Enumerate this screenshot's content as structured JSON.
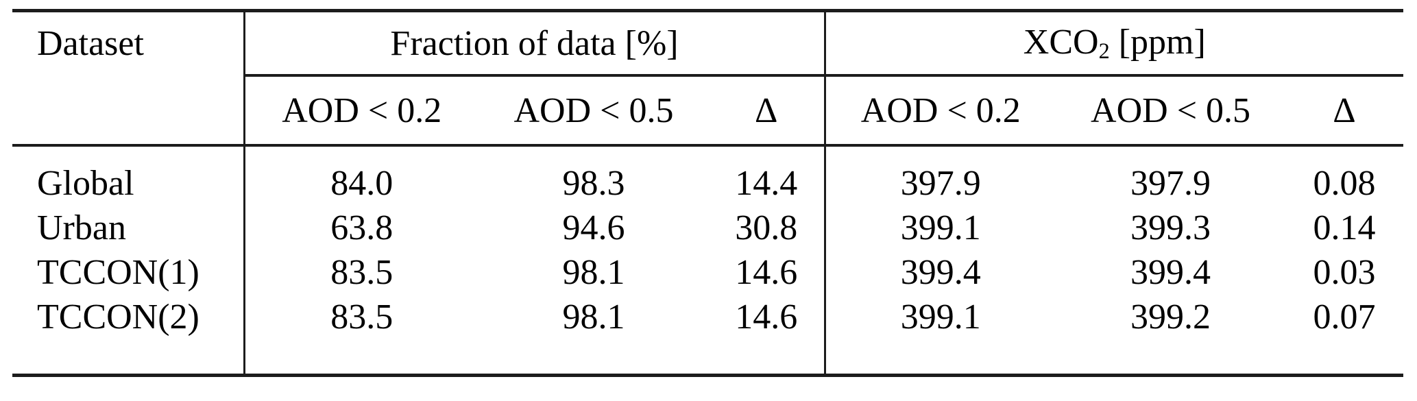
{
  "table": {
    "corner_header": "Dataset",
    "groups": [
      {
        "label": "Fraction of data [%]",
        "sub_headers": [
          "AOD < 0.2",
          "AOD < 0.5",
          "Δ"
        ]
      },
      {
        "label_prefix": "XCO",
        "label_subscript": "2",
        "label_suffix": " [ppm]",
        "sub_headers": [
          "AOD < 0.2",
          "AOD < 0.5",
          "Δ"
        ]
      }
    ],
    "rows": [
      {
        "dataset": "Global",
        "fraction": [
          "84.0",
          "98.3",
          "14.4"
        ],
        "xco2": [
          "397.9",
          "397.9",
          "0.08"
        ]
      },
      {
        "dataset": "Urban",
        "fraction": [
          "63.8",
          "94.6",
          "30.8"
        ],
        "xco2": [
          "399.1",
          "399.3",
          "0.14"
        ]
      },
      {
        "dataset": "TCCON(1)",
        "fraction": [
          "83.5",
          "98.1",
          "14.6"
        ],
        "xco2": [
          "399.4",
          "399.4",
          "0.03"
        ]
      },
      {
        "dataset": "TCCON(2)",
        "fraction": [
          "83.5",
          "98.1",
          "14.6"
        ],
        "xco2": [
          "399.1",
          "399.2",
          "0.07"
        ]
      }
    ]
  },
  "colors": {
    "background": "#ffffff",
    "text": "#000000",
    "rule": "#1c1c1c"
  }
}
